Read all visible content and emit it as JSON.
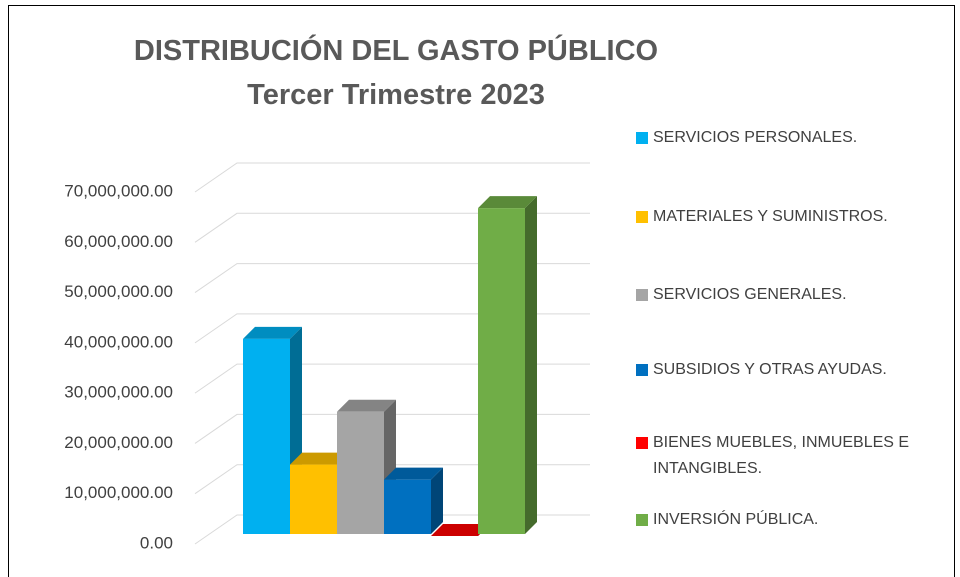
{
  "chart_data": {
    "type": "bar3d",
    "title": "DISTRIBUCIÓN DEL GASTO PÚBLICO",
    "subtitle": "Tercer Trimestre 2023",
    "series": [
      {
        "name": "SERVICIOS PERSONALES.",
        "color": "#00b0f0",
        "values": [
          40000000
        ]
      },
      {
        "name": "MATERIALES Y SUMINISTROS.",
        "color": "#ffc000",
        "values": [
          15000000
        ]
      },
      {
        "name": "SERVICIOS GENERALES.",
        "color": "#a5a5a5",
        "values": [
          25500000
        ]
      },
      {
        "name": "SUBSIDIOS Y OTRAS AYUDAS.",
        "color": "#0070c0",
        "values": [
          12000000
        ]
      },
      {
        "name": "BIENES MUEBLES, INMUEBLES E INTANGIBLES.",
        "color": "#ff0000",
        "values": [
          800000
        ]
      },
      {
        "name": "INVERSIÓN PÚBLICA.",
        "color": "#70ad47",
        "values": [
          66000000
        ]
      }
    ],
    "ylim": [
      0,
      70000000
    ],
    "yticks": [
      {
        "value": 0,
        "label": "0.00"
      },
      {
        "value": 10000000,
        "label": "10,000,000.00"
      },
      {
        "value": 20000000,
        "label": "20,000,000.00"
      },
      {
        "value": 30000000,
        "label": "30,000,000.00"
      },
      {
        "value": 40000000,
        "label": "40,000,000.00"
      },
      {
        "value": 50000000,
        "label": "50,000,000.00"
      },
      {
        "value": 60000000,
        "label": "60,000,000.00"
      },
      {
        "value": 70000000,
        "label": "70,000,000.00"
      }
    ],
    "grid": true,
    "legend": "right"
  }
}
